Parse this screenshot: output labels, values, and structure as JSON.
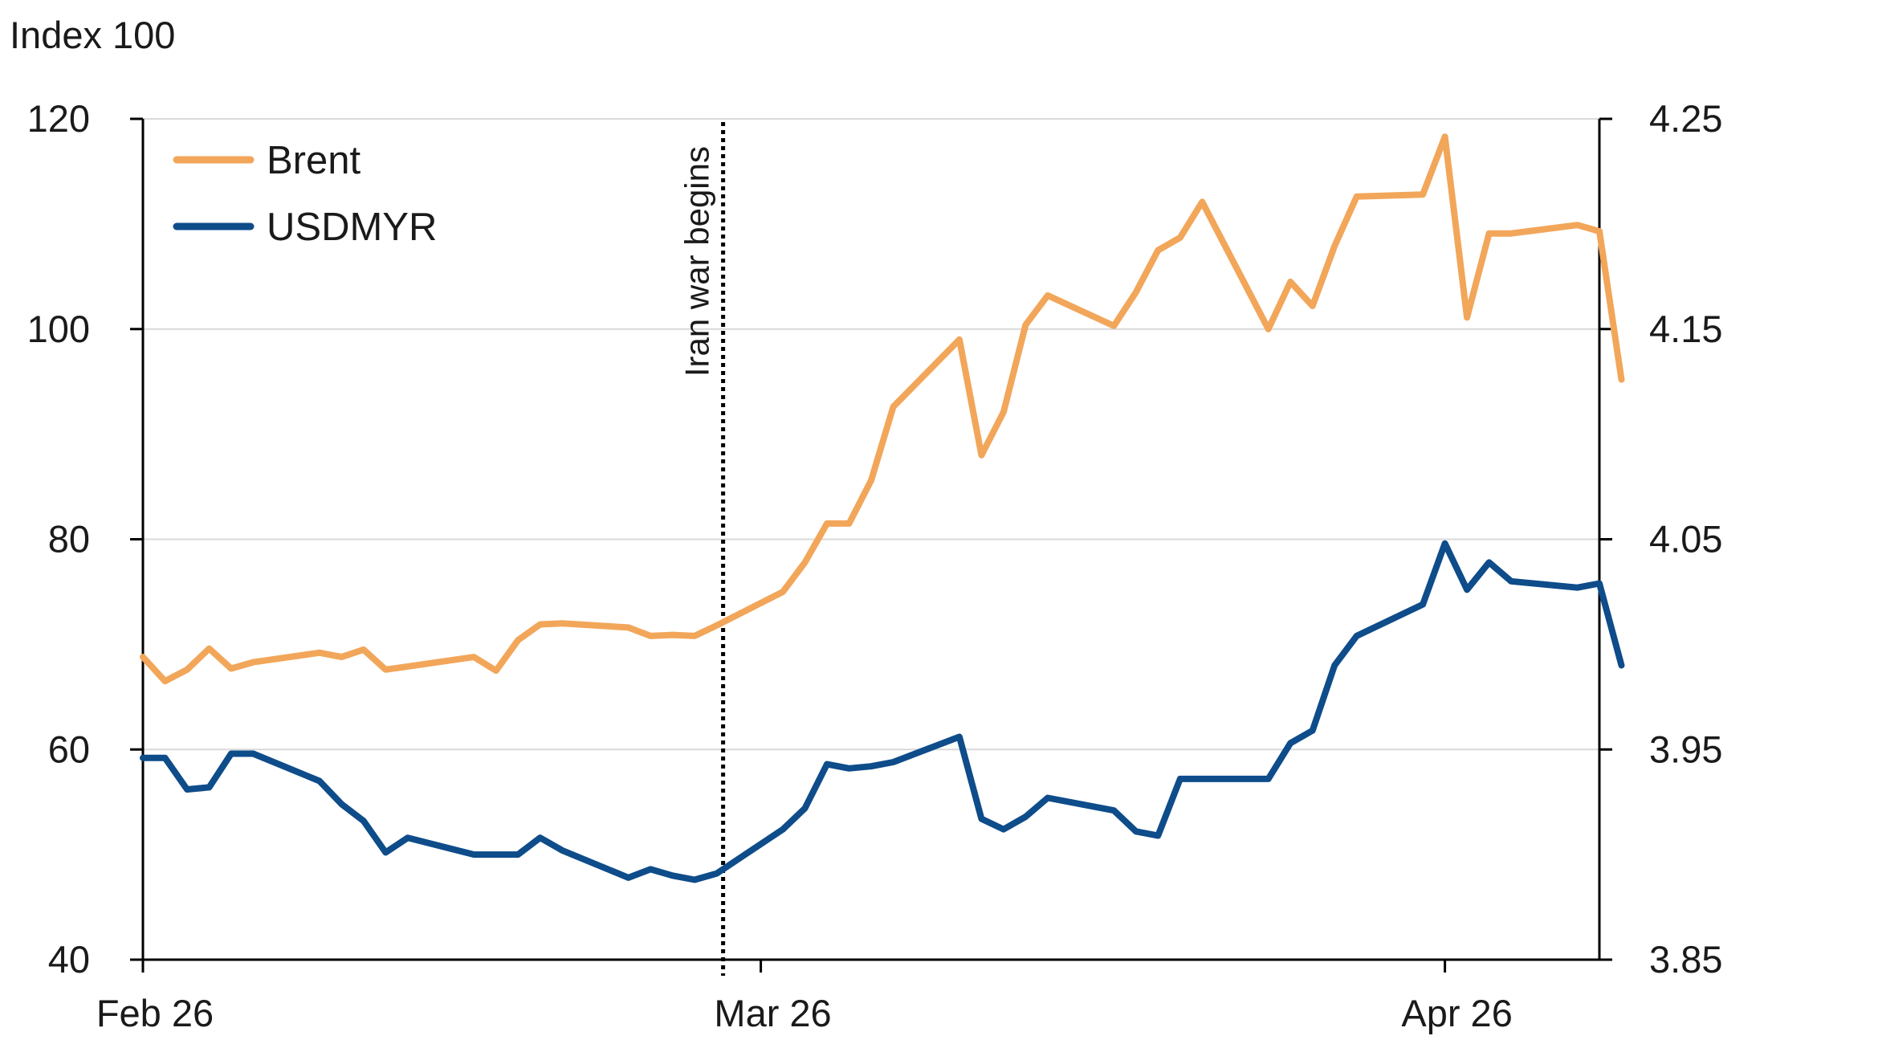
{
  "chart_data": {
    "type": "line",
    "title": "",
    "y_unit_label": "Index 100",
    "xlabel": "",
    "ylabel": "",
    "x_ticks": [
      {
        "date": "2026-02-01",
        "label": "Feb 26"
      },
      {
        "date": "2026-03-01",
        "label": "Mar 26"
      },
      {
        "date": "2026-04-01",
        "label": "Apr 26"
      }
    ],
    "x_range": [
      "2026-02-01",
      "2026-04-08"
    ],
    "y_left": {
      "min": 40,
      "max": 120,
      "ticks": [
        "40",
        "60",
        "80",
        "100",
        "120"
      ]
    },
    "y_right": {
      "min": 3.85,
      "max": 4.25,
      "ticks": [
        "3.85",
        "3.95",
        "4.05",
        "4.15",
        "4.25"
      ]
    },
    "grid": true,
    "legend": {
      "position": "top-left"
    },
    "annotation": {
      "label": "Iran war begins",
      "date": "2026-02-27",
      "style": "dotted-vertical"
    },
    "series": [
      {
        "name": "Brent",
        "axis": "left",
        "color": "#F2A65A",
        "points": [
          [
            "2026-02-01",
            68.8
          ],
          [
            "2026-02-02",
            66.5
          ],
          [
            "2026-02-03",
            67.6
          ],
          [
            "2026-02-04",
            69.6
          ],
          [
            "2026-02-05",
            67.7
          ],
          [
            "2026-02-06",
            68.3
          ],
          [
            "2026-02-09",
            69.2
          ],
          [
            "2026-02-10",
            68.8
          ],
          [
            "2026-02-11",
            69.5
          ],
          [
            "2026-02-12",
            67.6
          ],
          [
            "2026-02-13",
            67.9
          ],
          [
            "2026-02-16",
            68.8
          ],
          [
            "2026-02-17",
            67.5
          ],
          [
            "2026-02-18",
            70.4
          ],
          [
            "2026-02-19",
            71.9
          ],
          [
            "2026-02-20",
            72.0
          ],
          [
            "2026-02-23",
            71.6
          ],
          [
            "2026-02-24",
            70.8
          ],
          [
            "2026-02-25",
            70.9
          ],
          [
            "2026-02-26",
            70.8
          ],
          [
            "2026-02-27",
            71.8
          ],
          [
            "2026-03-02",
            75.0
          ],
          [
            "2026-03-03",
            77.8
          ],
          [
            "2026-03-04",
            81.5
          ],
          [
            "2026-03-05",
            81.5
          ],
          [
            "2026-03-06",
            85.6
          ],
          [
            "2026-03-07",
            92.6
          ],
          [
            "2026-03-10",
            99.0
          ],
          [
            "2026-03-11",
            88.0
          ],
          [
            "2026-03-12",
            92.1
          ],
          [
            "2026-03-13",
            100.4
          ],
          [
            "2026-03-14",
            103.2
          ],
          [
            "2026-03-17",
            100.3
          ],
          [
            "2026-03-18",
            103.5
          ],
          [
            "2026-03-19",
            107.5
          ],
          [
            "2026-03-20",
            108.7
          ],
          [
            "2026-03-21",
            112.1
          ],
          [
            "2026-03-24",
            100.0
          ],
          [
            "2026-03-25",
            104.5
          ],
          [
            "2026-03-26",
            102.2
          ],
          [
            "2026-03-27",
            107.9
          ],
          [
            "2026-03-28",
            112.6
          ],
          [
            "2026-03-31",
            112.8
          ],
          [
            "2026-04-01",
            118.3
          ],
          [
            "2026-04-02",
            101.1
          ],
          [
            "2026-04-03",
            109.1
          ],
          [
            "2026-04-04",
            109.1
          ],
          [
            "2026-04-07",
            109.9
          ],
          [
            "2026-04-08",
            109.3
          ],
          [
            "2026-04-09",
            95.2
          ]
        ]
      },
      {
        "name": "USDMYR",
        "axis": "right",
        "color": "#0E4C8A",
        "points": [
          [
            "2026-02-01",
            3.946
          ],
          [
            "2026-02-02",
            3.946
          ],
          [
            "2026-02-03",
            3.931
          ],
          [
            "2026-02-04",
            3.932
          ],
          [
            "2026-02-05",
            3.948
          ],
          [
            "2026-02-06",
            3.948
          ],
          [
            "2026-02-09",
            3.935
          ],
          [
            "2026-02-10",
            3.924
          ],
          [
            "2026-02-11",
            3.916
          ],
          [
            "2026-02-12",
            3.901
          ],
          [
            "2026-02-13",
            3.908
          ],
          [
            "2026-02-16",
            3.9
          ],
          [
            "2026-02-17",
            3.9
          ],
          [
            "2026-02-18",
            3.9
          ],
          [
            "2026-02-19",
            3.908
          ],
          [
            "2026-02-20",
            3.902
          ],
          [
            "2026-02-23",
            3.889
          ],
          [
            "2026-02-24",
            3.893
          ],
          [
            "2026-02-25",
            3.89
          ],
          [
            "2026-02-26",
            3.888
          ],
          [
            "2026-02-27",
            3.891
          ],
          [
            "2026-03-02",
            3.912
          ],
          [
            "2026-03-03",
            3.922
          ],
          [
            "2026-03-04",
            3.943
          ],
          [
            "2026-03-05",
            3.941
          ],
          [
            "2026-03-06",
            3.942
          ],
          [
            "2026-03-07",
            3.944
          ],
          [
            "2026-03-10",
            3.956
          ],
          [
            "2026-03-11",
            3.917
          ],
          [
            "2026-03-12",
            3.912
          ],
          [
            "2026-03-13",
            3.918
          ],
          [
            "2026-03-14",
            3.927
          ],
          [
            "2026-03-17",
            3.921
          ],
          [
            "2026-03-18",
            3.911
          ],
          [
            "2026-03-19",
            3.909
          ],
          [
            "2026-03-20",
            3.936
          ],
          [
            "2026-03-21",
            3.936
          ],
          [
            "2026-03-24",
            3.936
          ],
          [
            "2026-03-25",
            3.953
          ],
          [
            "2026-03-26",
            3.959
          ],
          [
            "2026-03-27",
            3.99
          ],
          [
            "2026-03-28",
            4.004
          ],
          [
            "2026-03-31",
            4.019
          ],
          [
            "2026-04-01",
            4.048
          ],
          [
            "2026-04-02",
            4.026
          ],
          [
            "2026-04-03",
            4.039
          ],
          [
            "2026-04-04",
            4.03
          ],
          [
            "2026-04-07",
            4.027
          ],
          [
            "2026-04-08",
            4.029
          ],
          [
            "2026-04-09",
            3.99
          ]
        ]
      }
    ]
  }
}
